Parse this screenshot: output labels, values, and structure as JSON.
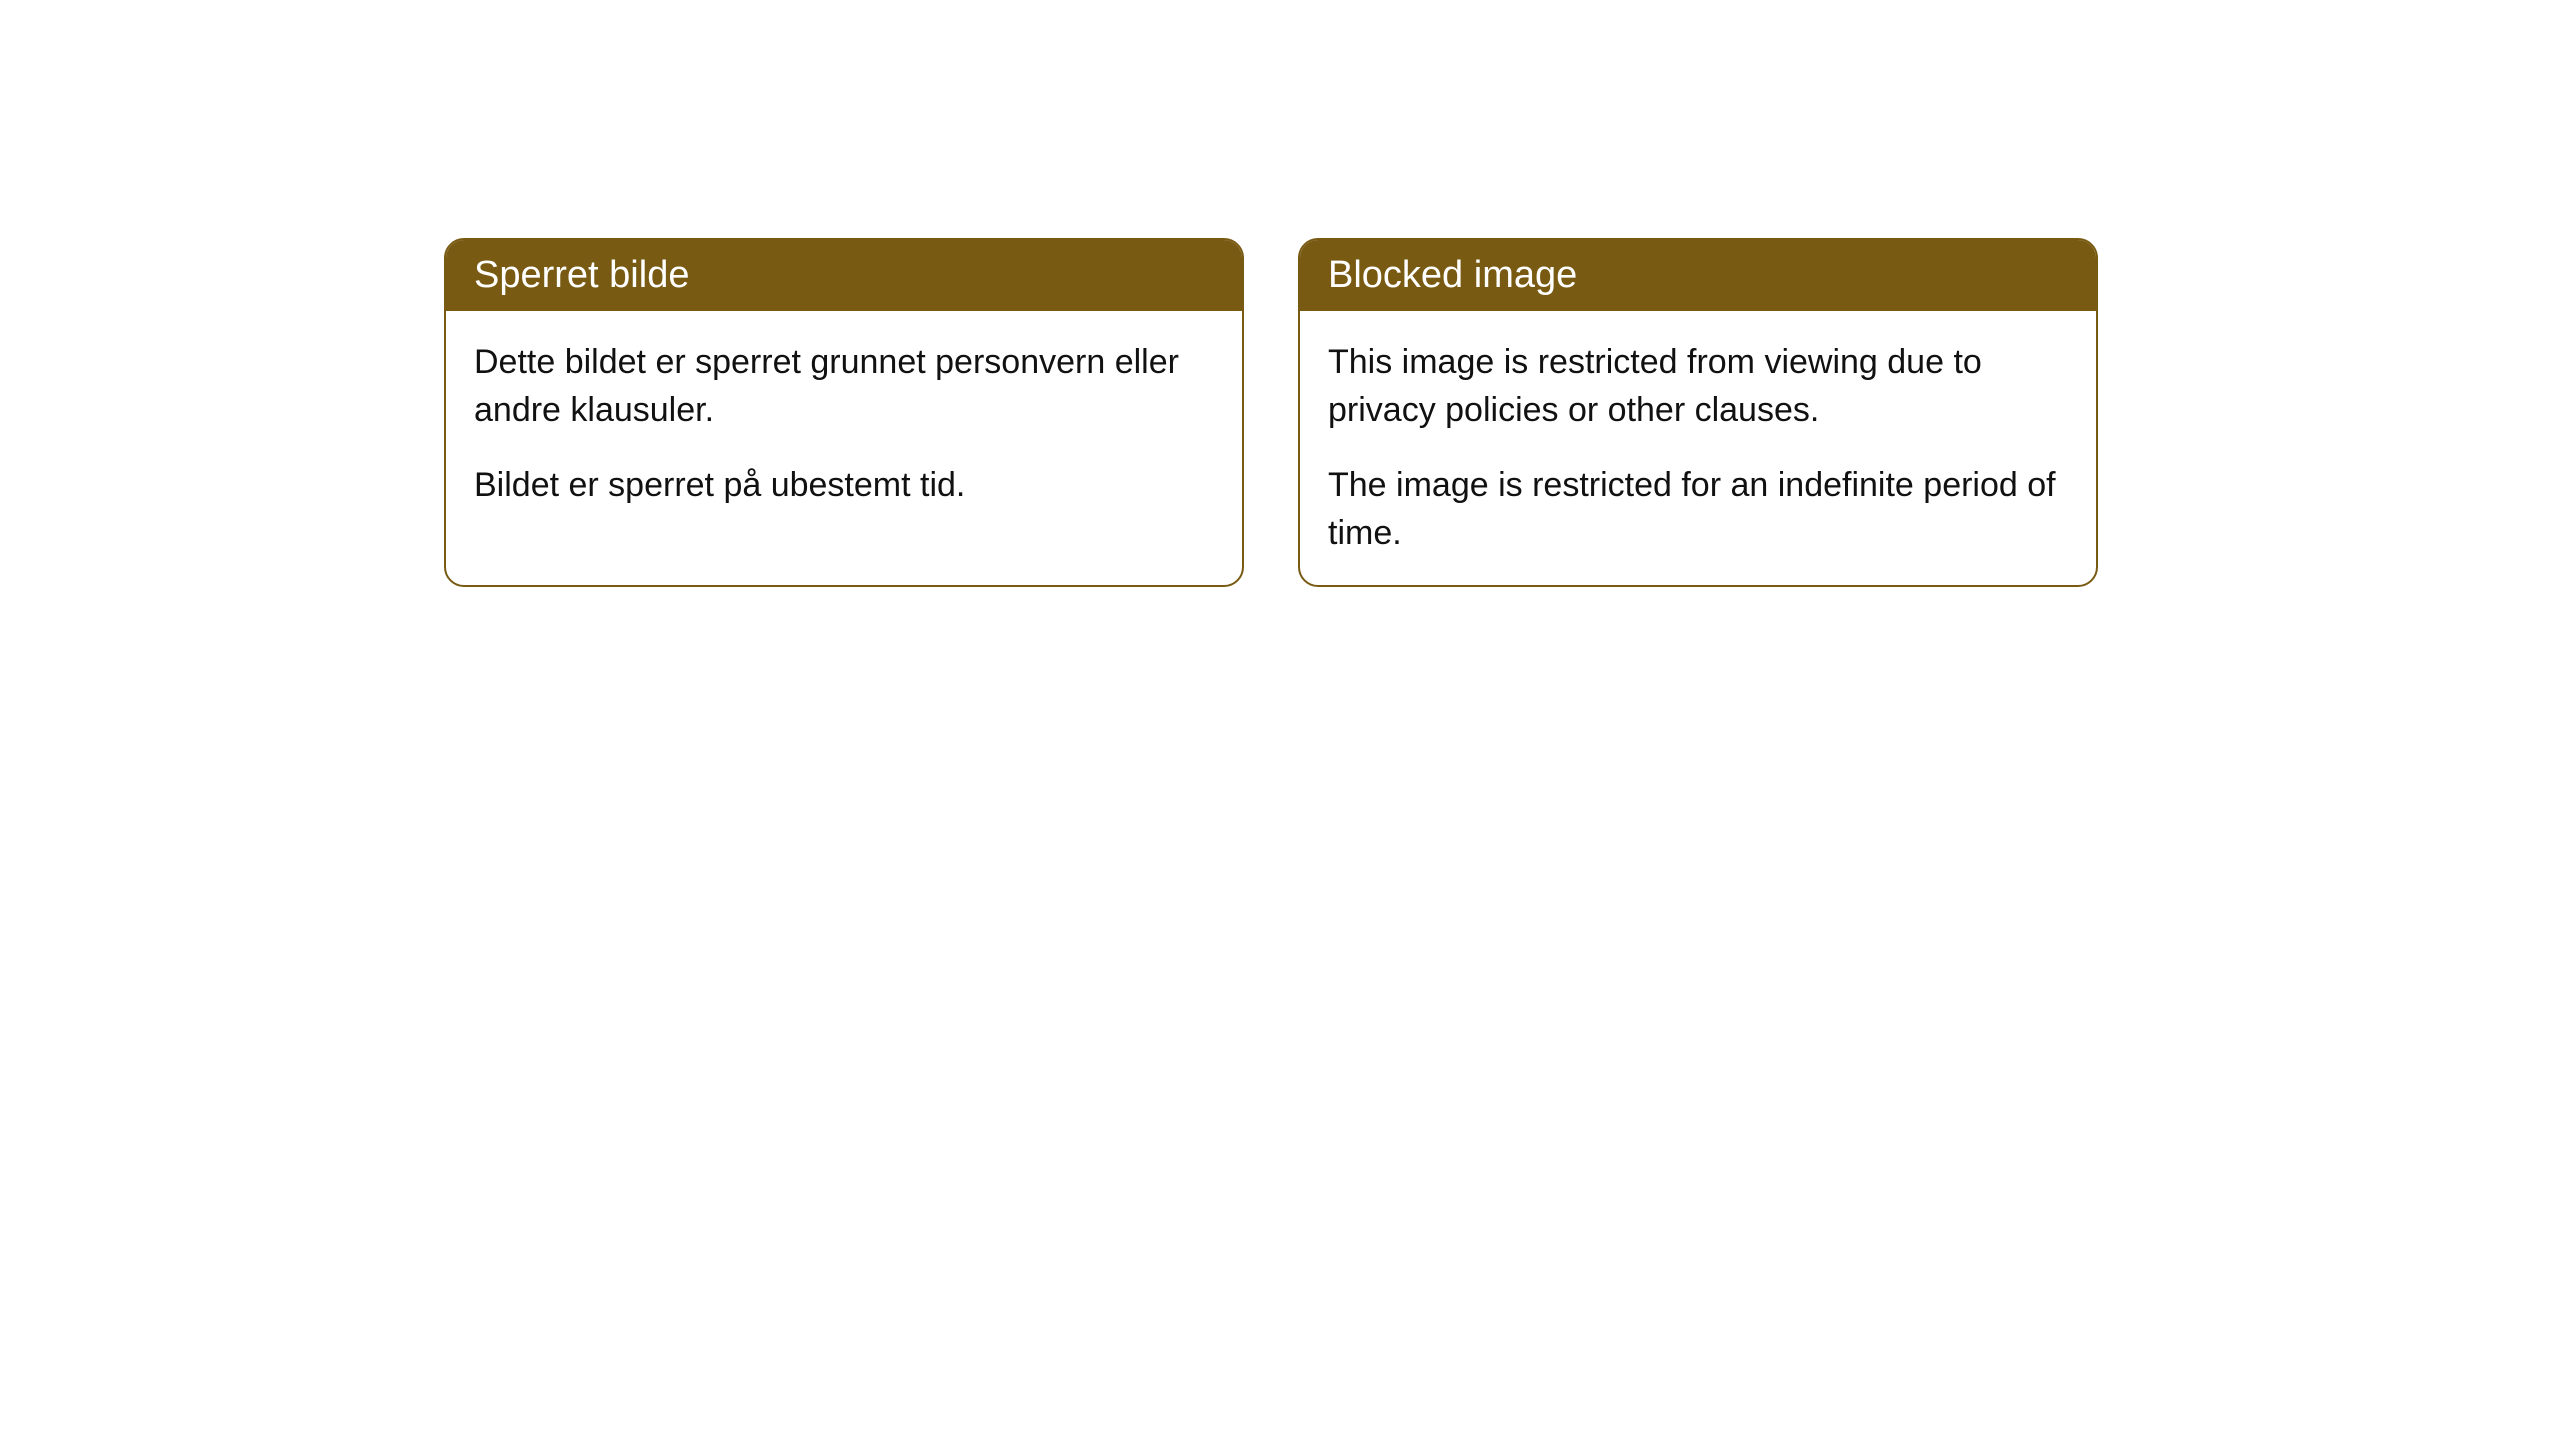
{
  "cards": {
    "norwegian": {
      "title": "Sperret bilde",
      "paragraph1": "Dette bildet er sperret grunnet personvern eller andre klausuler.",
      "paragraph2": "Bildet er sperret på ubestemt tid."
    },
    "english": {
      "title": "Blocked image",
      "paragraph1": "This image is restricted from viewing due to privacy policies or other clauses.",
      "paragraph2": "The image is restricted for an indefinite period of time."
    }
  },
  "styling": {
    "header_background": "#785a12",
    "header_text_color": "#ffffff",
    "border_color": "#785a12",
    "body_text_color": "#111111",
    "page_background": "#ffffff",
    "border_radius": 20,
    "header_fontsize": 38,
    "body_fontsize": 34
  }
}
